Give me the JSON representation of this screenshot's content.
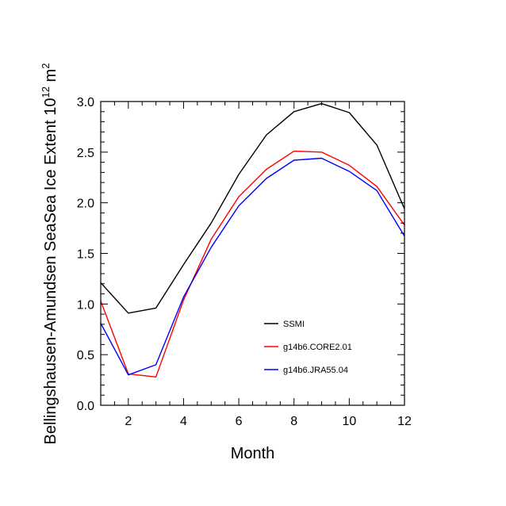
{
  "chart_data": {
    "type": "line",
    "title": "",
    "xlabel": "Month",
    "ylabel": {
      "prefix": "Bellingshausen-Amundsen SeaSea Ice Extent 10",
      "sup1": "12",
      "mid": " m",
      "sup2": "2"
    },
    "xlim": [
      1,
      12
    ],
    "ylim": [
      0,
      3
    ],
    "xticks": [
      2,
      4,
      6,
      8,
      10,
      12
    ],
    "xtick_labels": [
      "2",
      "4",
      "6",
      "8",
      "10",
      "12"
    ],
    "yticks": [
      0,
      0.5,
      1,
      1.5,
      2,
      2.5,
      3
    ],
    "ytick_labels": [
      "0.0",
      "0.5",
      "1.0",
      "1.5",
      "2.0",
      "2.5",
      "3.0"
    ],
    "grid": false,
    "legend_position": "lower-right",
    "x": [
      1,
      2,
      3,
      4,
      5,
      6,
      7,
      8,
      9,
      10,
      11,
      12
    ],
    "series": [
      {
        "name": "SSMI",
        "color": "#000000",
        "values": [
          1.21,
          0.91,
          0.96,
          1.39,
          1.8,
          2.28,
          2.67,
          2.9,
          2.98,
          2.89,
          2.57,
          1.94
        ]
      },
      {
        "name": "g14b6.CORE2.01",
        "color": "#ff0000",
        "values": [
          1.03,
          0.31,
          0.28,
          1.04,
          1.64,
          2.06,
          2.33,
          2.51,
          2.5,
          2.37,
          2.16,
          1.78
        ]
      },
      {
        "name": "g14b6.JRA55.04",
        "color": "#0000ff",
        "values": [
          0.81,
          0.3,
          0.4,
          1.07,
          1.56,
          1.97,
          2.24,
          2.42,
          2.44,
          2.31,
          2.12,
          1.67
        ]
      }
    ]
  }
}
